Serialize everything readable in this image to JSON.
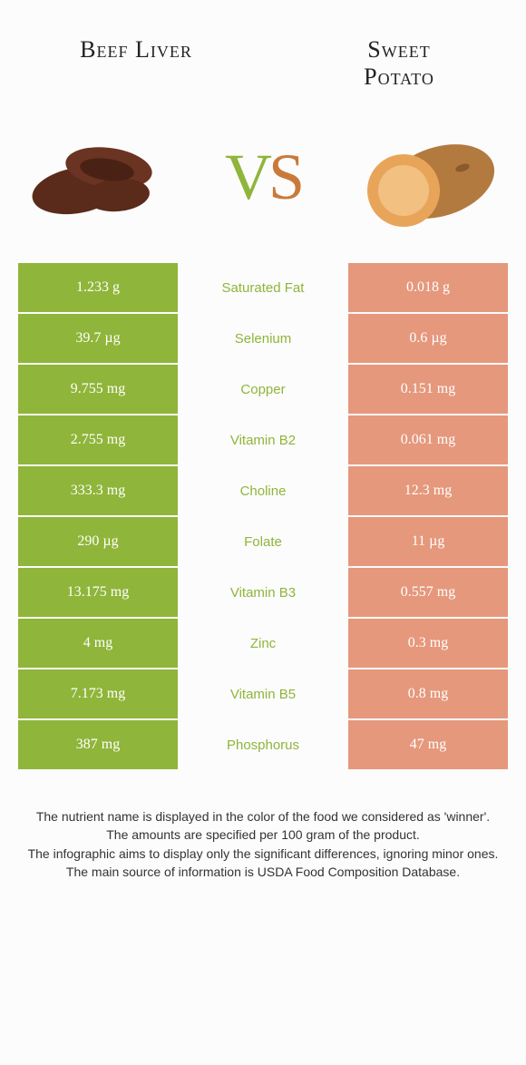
{
  "header": {
    "left_title": "Beef Liver",
    "right_title": "Sweet\nPotato"
  },
  "vs": {
    "v": "V",
    "s": "S"
  },
  "colors": {
    "left_col": "#8fb53a",
    "mid_col": "#fcfcfc",
    "right_col": "#e5987c",
    "nutrient_left_text": "#8fb53a",
    "nutrient_right_text": "#d98a6e"
  },
  "rows": [
    {
      "left": "1.233 g",
      "label": "Saturated Fat",
      "right": "0.018 g",
      "winner": "left"
    },
    {
      "left": "39.7 µg",
      "label": "Selenium",
      "right": "0.6 µg",
      "winner": "left"
    },
    {
      "left": "9.755 mg",
      "label": "Copper",
      "right": "0.151 mg",
      "winner": "left"
    },
    {
      "left": "2.755 mg",
      "label": "Vitamin B2",
      "right": "0.061 mg",
      "winner": "left"
    },
    {
      "left": "333.3 mg",
      "label": "Choline",
      "right": "12.3 mg",
      "winner": "left"
    },
    {
      "left": "290 µg",
      "label": "Folate",
      "right": "11 µg",
      "winner": "left"
    },
    {
      "left": "13.175 mg",
      "label": "Vitamin B3",
      "right": "0.557 mg",
      "winner": "left"
    },
    {
      "left": "4 mg",
      "label": "Zinc",
      "right": "0.3 mg",
      "winner": "left"
    },
    {
      "left": "7.173 mg",
      "label": "Vitamin B5",
      "right": "0.8 mg",
      "winner": "left"
    },
    {
      "left": "387 mg",
      "label": "Phosphorus",
      "right": "47 mg",
      "winner": "left"
    }
  ],
  "footer": {
    "l1": "The nutrient name is displayed in the color of the food we considered as 'winner'.",
    "l2": "The amounts are specified per 100 gram of the product.",
    "l3": "The infographic aims to display only the significant differences, ignoring minor ones.",
    "l4": "The main source of information is USDA Food Composition Database."
  }
}
